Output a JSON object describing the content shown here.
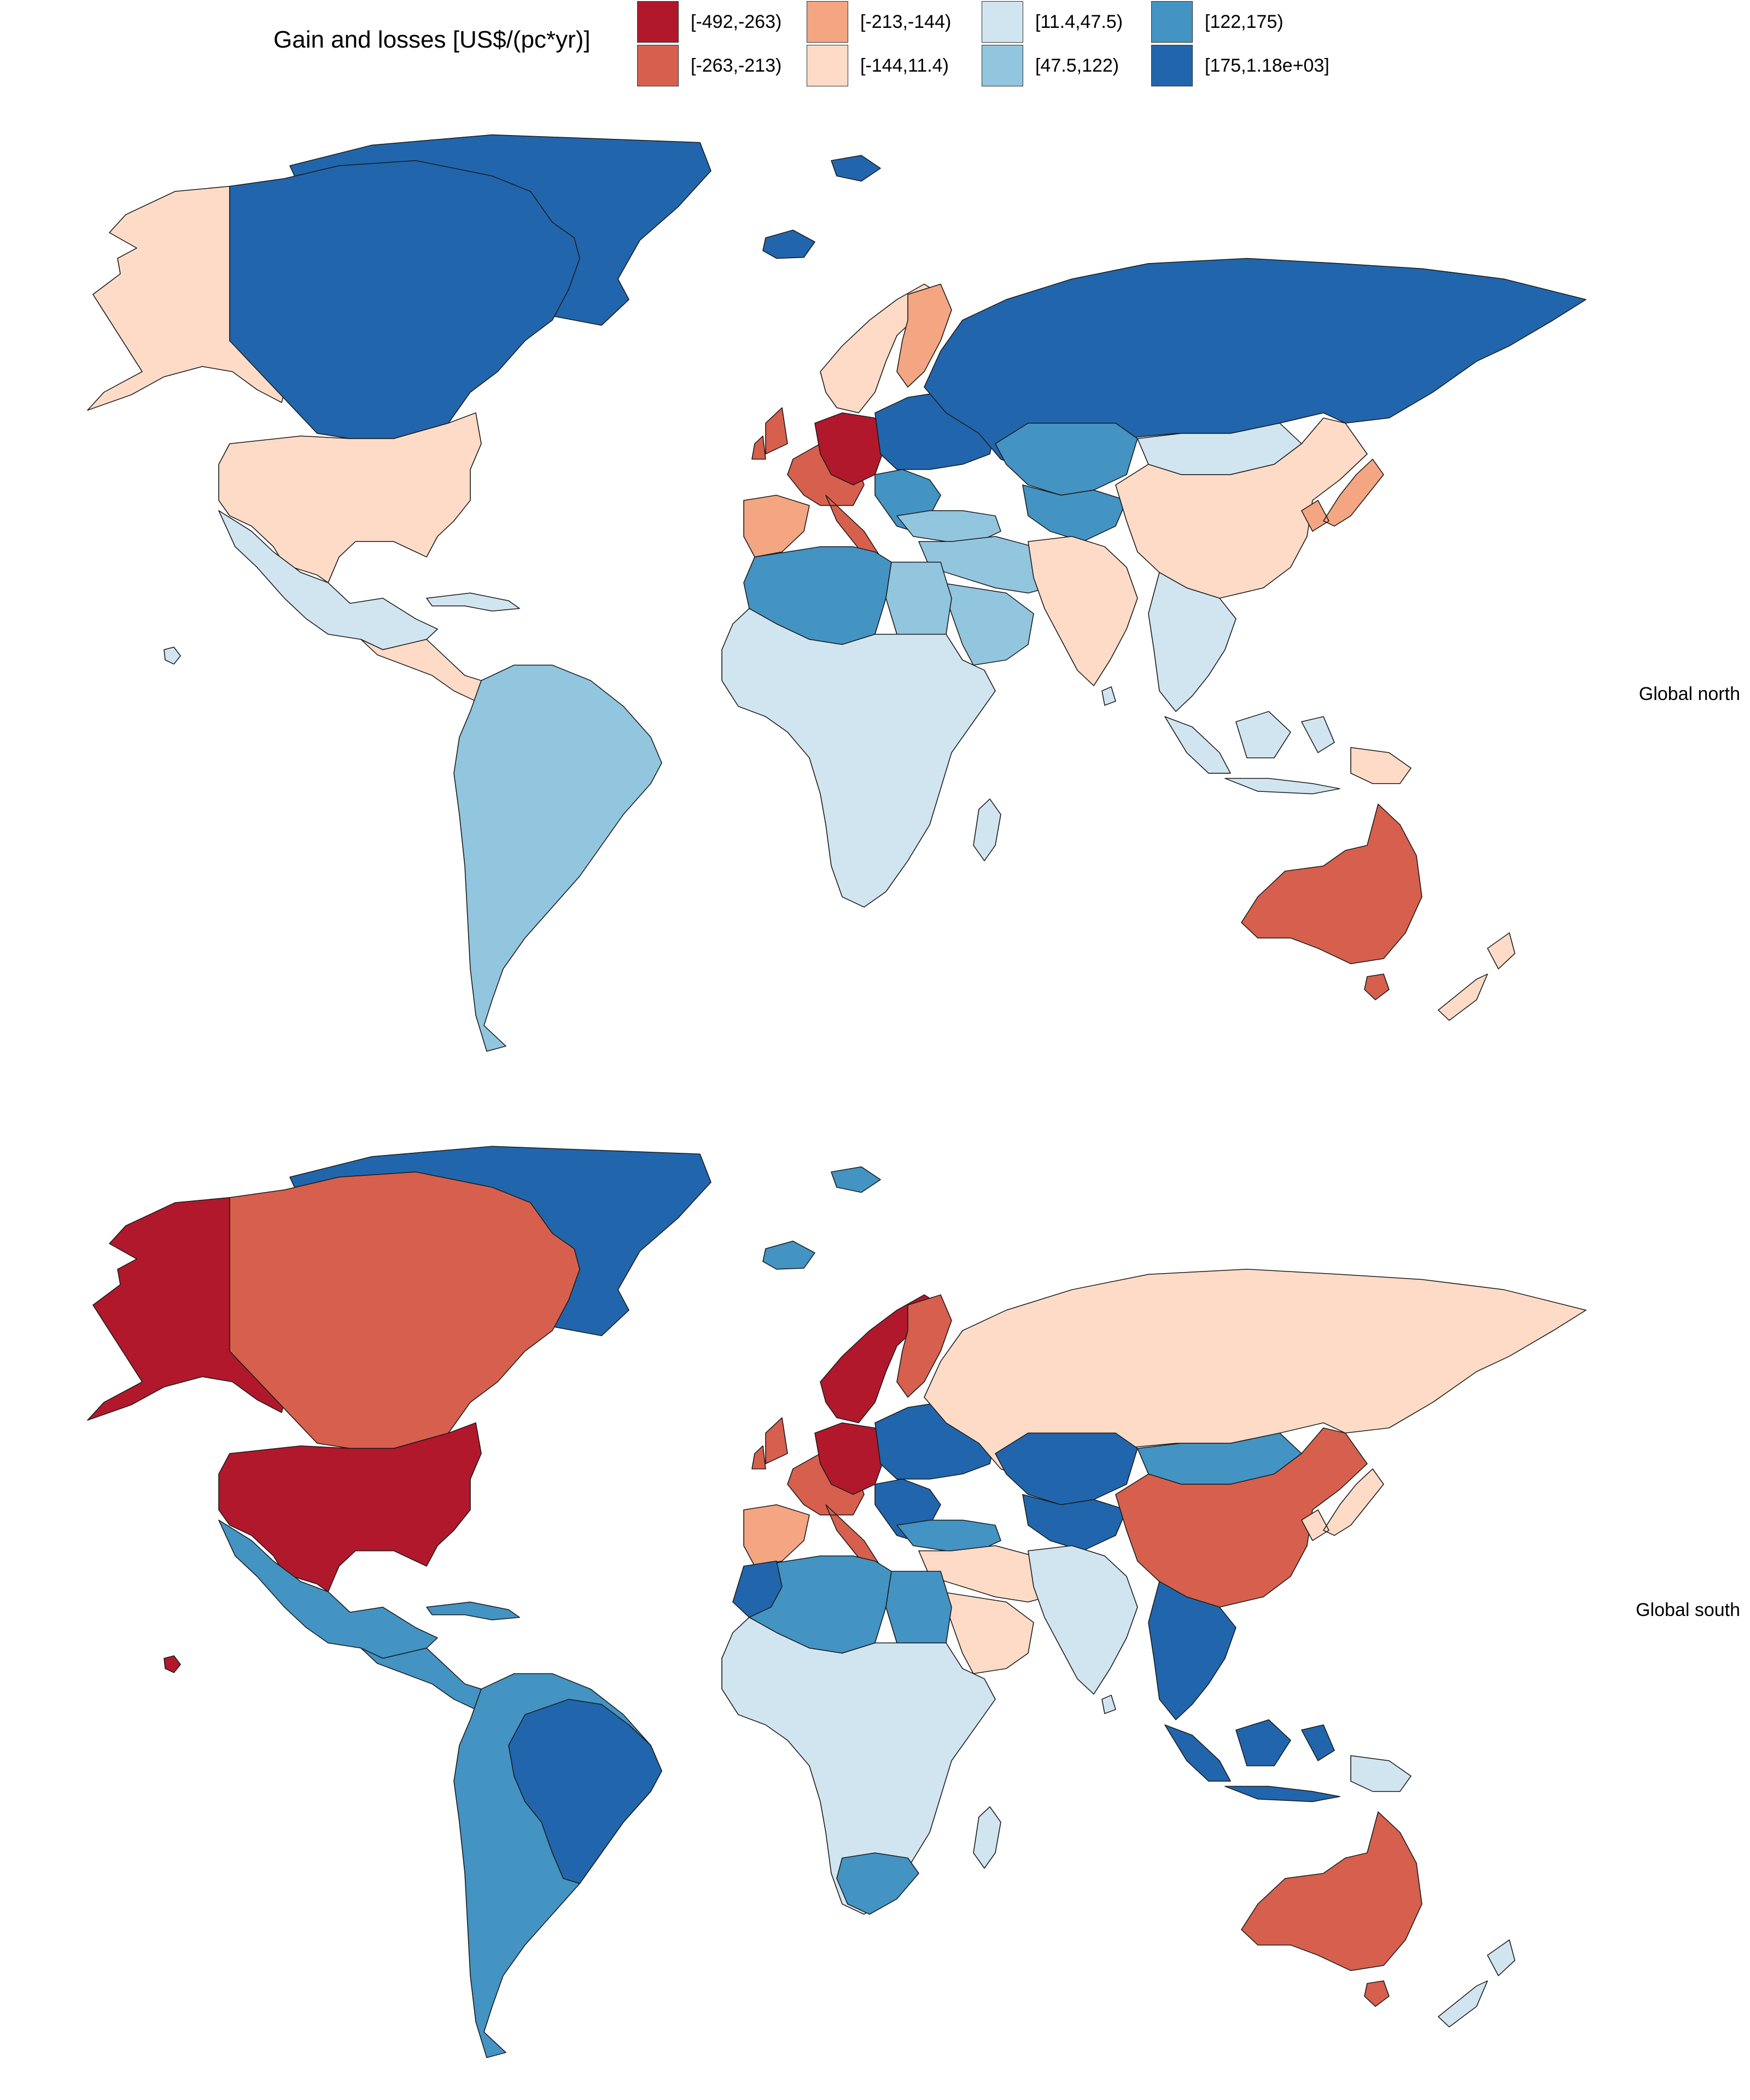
{
  "legend": {
    "title": "Gain and losses [US$/(pc*yr)]",
    "classes": [
      {
        "label": "[-492,-263)",
        "color": "#b2182b"
      },
      {
        "label": "[-263,-213)",
        "color": "#d6604d"
      },
      {
        "label": "[-213,-144)",
        "color": "#f4a582"
      },
      {
        "label": "[-144,11.4)",
        "color": "#fddbc7"
      },
      {
        "label": "[11.4,47.5)",
        "color": "#d1e5f0"
      },
      {
        "label": "[47.5,122)",
        "color": "#92c5de"
      },
      {
        "label": "[122,175)",
        "color": "#4393c3"
      },
      {
        "label": "[175,1.18e+03]",
        "color": "#2166ac"
      }
    ]
  },
  "panels": [
    {
      "label": "Global north",
      "regions": {
        "alaska": 3,
        "canada": 7,
        "greenland": 7,
        "usa": 3,
        "mexico": 4,
        "central_america": 3,
        "caribbean": 4,
        "south_america": 5,
        "western_europe": 1,
        "germany_core": 0,
        "iberia": 2,
        "scandinavia": 3,
        "finland": 2,
        "eastern_europe": 7,
        "balkans": 6,
        "turkey": 5,
        "russia": 7,
        "kazakhstan": 6,
        "central_asia": 6,
        "mongolia": 4,
        "china": 3,
        "india": 3,
        "japan_korea": 2,
        "middle_east": 5,
        "arabia": 5,
        "north_africa": 6,
        "egypt": 5,
        "subsaharan_africa": 4,
        "mainland_se_asia": 4,
        "indonesia": 4,
        "png": 3,
        "australia": 1,
        "tasmania": 1,
        "new_zealand": 3,
        "madagascar": 4,
        "iceland": 7,
        "svalbard": 7,
        "hawaii": 4,
        "sri_lanka": 4
      }
    },
    {
      "label": "Global south",
      "regions": {
        "alaska": 0,
        "canada": 1,
        "greenland": 7,
        "usa": 0,
        "mexico": 6,
        "central_america": 6,
        "caribbean": 6,
        "south_america": 6,
        "brazil": 7,
        "western_europe": 1,
        "germany_core": 0,
        "iberia": 2,
        "scandinavia": 0,
        "finland": 1,
        "eastern_europe": 7,
        "balkans": 7,
        "turkey": 6,
        "russia": 3,
        "kazakhstan": 7,
        "central_asia": 7,
        "mongolia": 6,
        "china": 1,
        "india": 4,
        "japan_korea": 3,
        "middle_east": 3,
        "arabia": 3,
        "north_africa": 6,
        "morocco": 7,
        "egypt": 6,
        "subsaharan_africa": 4,
        "south_africa": 6,
        "mainland_se_asia": 7,
        "indonesia": 7,
        "png": 4,
        "australia": 1,
        "tasmania": 1,
        "new_zealand": 4,
        "madagascar": 4,
        "iceland": 6,
        "svalbard": 6,
        "hawaii": 0,
        "sri_lanka": 4
      }
    }
  ]
}
